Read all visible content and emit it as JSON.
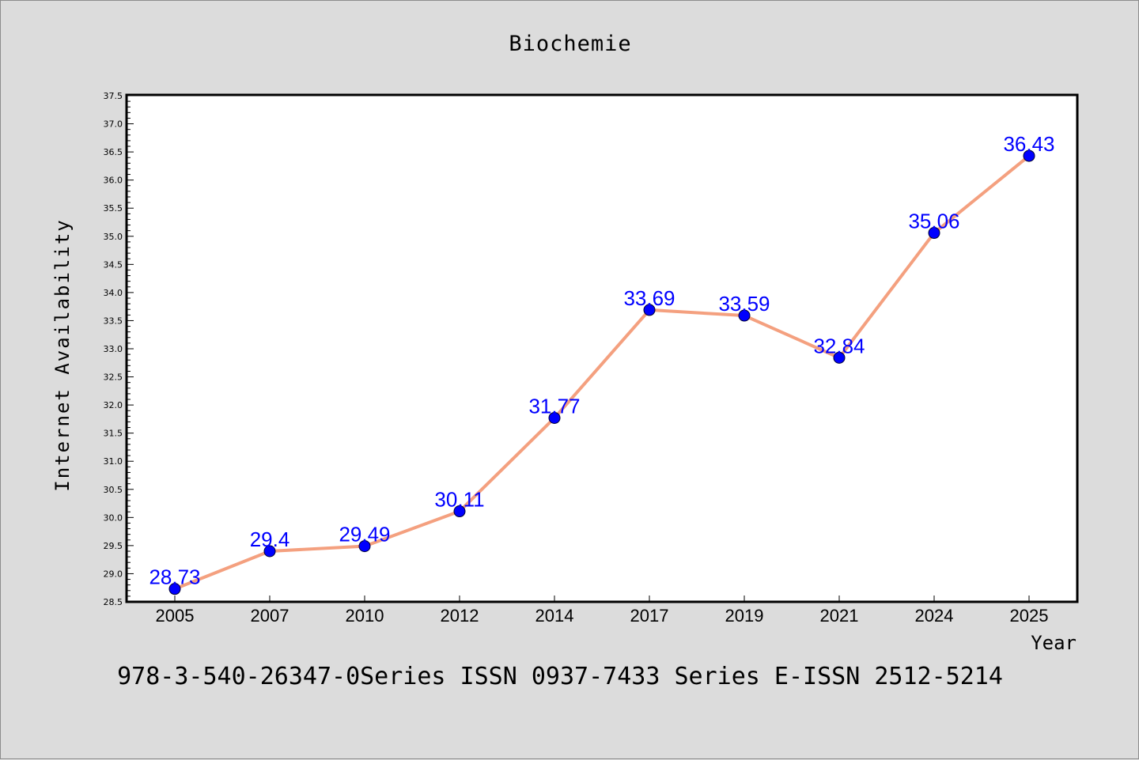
{
  "chart_data": {
    "type": "line",
    "title": "Biochemie",
    "subtitle": "978-3-540-26347-0Series ISSN 0937-7433 Series E-ISSN 2512-5214",
    "xlabel": "Year",
    "ylabel": "Internet Availability",
    "categories": [
      "2005",
      "2007",
      "2010",
      "2012",
      "2014",
      "2017",
      "2019",
      "2021",
      "2024",
      "2025"
    ],
    "series": [
      {
        "values": [
          28.73,
          29.4,
          29.49,
          30.11,
          31.77,
          33.69,
          33.59,
          32.84,
          35.06,
          36.43
        ],
        "labels": [
          "28.73",
          "29.4",
          "29.49",
          "30.11",
          "31.77",
          "33.69",
          "33.59",
          "32.84",
          "35.06",
          "36.43"
        ]
      }
    ],
    "ylim": [
      28.5,
      37.5
    ],
    "yticks": [
      "28.5",
      "29.0",
      "29.5",
      "30.0",
      "30.5",
      "31.0",
      "31.5",
      "32.0",
      "32.5",
      "33.0",
      "33.5",
      "34.0",
      "34.5",
      "35.0",
      "35.5",
      "36.0",
      "36.5",
      "37.0",
      "37.5"
    ],
    "grid": false,
    "legend": "none",
    "colors": {
      "background": "#dcdcdc",
      "plot_background": "#ffffff",
      "line": "#f4a07f",
      "marker": "#0000ff",
      "data_label": "#0000ff",
      "text": "#000000"
    }
  }
}
